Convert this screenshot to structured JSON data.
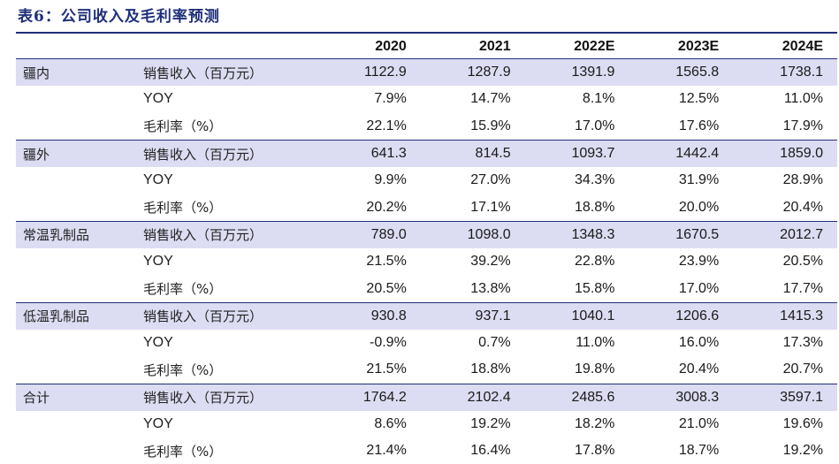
{
  "title": "表6：公司收入及毛利率预测",
  "header": {
    "years": [
      "2020",
      "2021",
      "2022E",
      "2023E",
      "2024E"
    ]
  },
  "groups": [
    {
      "name": "疆内",
      "rows": [
        {
          "metric": "销售收入（百万元）",
          "values": [
            "1122.9",
            "1287.9",
            "1391.9",
            "1565.8",
            "1738.1"
          ]
        },
        {
          "metric": "YOY",
          "values": [
            "7.9%",
            "14.7%",
            "8.1%",
            "12.5%",
            "11.0%"
          ]
        },
        {
          "metric": "毛利率（%）",
          "values": [
            "22.1%",
            "15.9%",
            "17.0%",
            "17.6%",
            "17.9%"
          ]
        }
      ]
    },
    {
      "name": "疆外",
      "rows": [
        {
          "metric": "销售收入（百万元）",
          "values": [
            "641.3",
            "814.5",
            "1093.7",
            "1442.4",
            "1859.0"
          ]
        },
        {
          "metric": "YOY",
          "values": [
            "9.9%",
            "27.0%",
            "34.3%",
            "31.9%",
            "28.9%"
          ]
        },
        {
          "metric": "毛利率（%）",
          "values": [
            "20.2%",
            "17.1%",
            "18.8%",
            "20.0%",
            "20.4%"
          ]
        }
      ]
    },
    {
      "name": "常温乳制品",
      "rows": [
        {
          "metric": "销售收入（百万元）",
          "values": [
            "789.0",
            "1098.0",
            "1348.3",
            "1670.5",
            "2012.7"
          ]
        },
        {
          "metric": "YOY",
          "values": [
            "21.5%",
            "39.2%",
            "22.8%",
            "23.9%",
            "20.5%"
          ]
        },
        {
          "metric": "毛利率（%）",
          "values": [
            "20.5%",
            "13.8%",
            "15.8%",
            "17.0%",
            "17.7%"
          ]
        }
      ]
    },
    {
      "name": "低温乳制品",
      "rows": [
        {
          "metric": "销售收入（百万元）",
          "values": [
            "930.8",
            "937.1",
            "1040.1",
            "1206.6",
            "1415.3"
          ]
        },
        {
          "metric": "YOY",
          "values": [
            "-0.9%",
            "0.7%",
            "11.0%",
            "16.0%",
            "17.3%"
          ]
        },
        {
          "metric": "毛利率（%）",
          "values": [
            "21.5%",
            "18.8%",
            "19.8%",
            "20.4%",
            "20.7%"
          ]
        }
      ]
    },
    {
      "name": "合计",
      "rows": [
        {
          "metric": "销售收入（百万元）",
          "values": [
            "1764.2",
            "2102.4",
            "2485.6",
            "3008.3",
            "3597.1"
          ]
        },
        {
          "metric": "YOY",
          "values": [
            "8.6%",
            "19.2%",
            "18.2%",
            "21.0%",
            "19.6%"
          ]
        },
        {
          "metric": "毛利率（%）",
          "values": [
            "21.4%",
            "16.4%",
            "17.8%",
            "18.7%",
            "19.2%"
          ]
        }
      ]
    }
  ]
}
